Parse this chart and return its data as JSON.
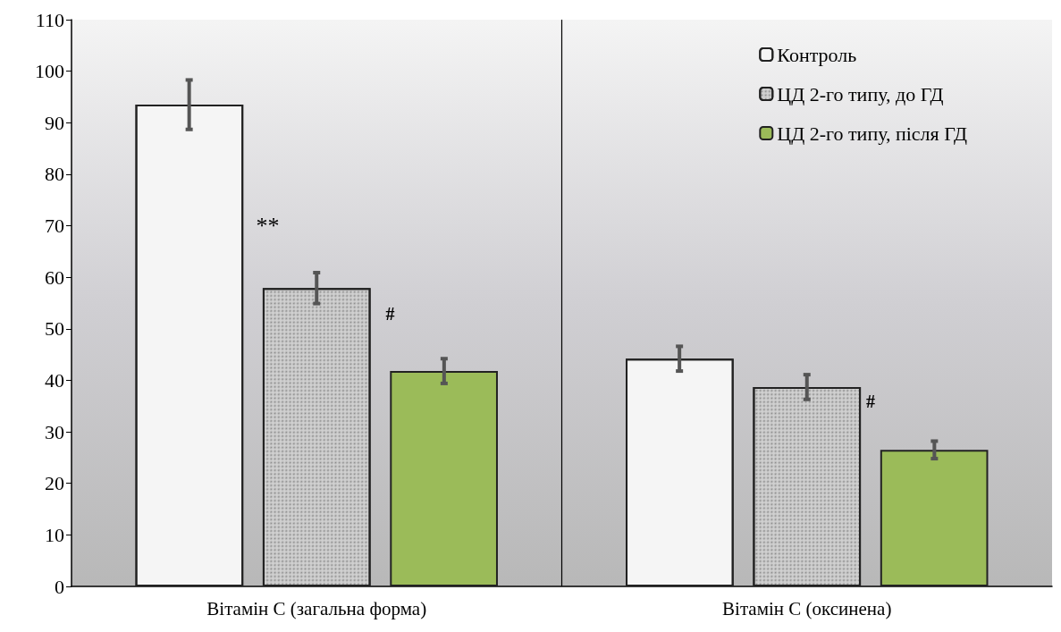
{
  "chart_data": {
    "type": "bar",
    "categories": [
      "Вітамін С (загальна форма)",
      "Вітамін С (оксинена)"
    ],
    "series": [
      {
        "name": "Контроль",
        "color": "#f5f5f5",
        "values": [
          93.5,
          44.2
        ],
        "errors": [
          4.8,
          2.4
        ]
      },
      {
        "name": "ЦД 2-го типу, до ГД",
        "color": "#d0d0d0",
        "values": [
          57.9,
          38.7
        ],
        "errors": [
          3,
          2.4
        ]
      },
      {
        "name": "ЦД 2-го типу, після ГД",
        "color": "#9bbb59",
        "values": [
          41.8,
          26.5
        ],
        "errors": [
          2.4,
          1.7
        ]
      }
    ],
    "ylim": [
      0,
      110
    ],
    "yticks": [
      0,
      10,
      20,
      30,
      40,
      50,
      60,
      70,
      80,
      90,
      100,
      110
    ],
    "legend": "top right",
    "annotations": [
      "**",
      "#",
      "#"
    ]
  }
}
